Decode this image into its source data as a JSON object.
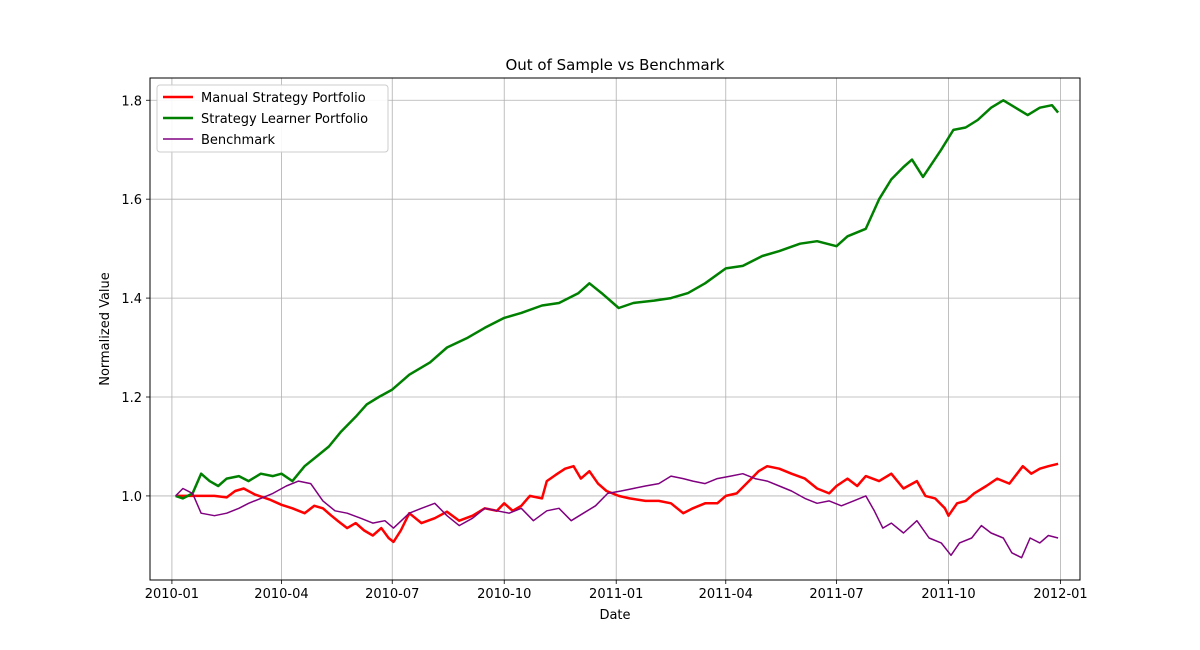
{
  "chart_data": {
    "type": "line",
    "title": "Out of Sample vs Benchmark",
    "xlabel": "Date",
    "ylabel": "Normalized Value",
    "x_range": [
      "2009-12-14",
      "2012-01-17"
    ],
    "ylim": [
      0.83,
      1.845
    ],
    "x_ticks": [
      {
        "date": "2010-01-01",
        "label": "2010-01"
      },
      {
        "date": "2010-04-01",
        "label": "2010-04"
      },
      {
        "date": "2010-07-01",
        "label": "2010-07"
      },
      {
        "date": "2010-10-01",
        "label": "2010-10"
      },
      {
        "date": "2011-01-01",
        "label": "2011-01"
      },
      {
        "date": "2011-04-01",
        "label": "2011-04"
      },
      {
        "date": "2011-07-01",
        "label": "2011-07"
      },
      {
        "date": "2011-10-01",
        "label": "2011-10"
      },
      {
        "date": "2012-01-01",
        "label": "2012-01"
      }
    ],
    "y_ticks": [
      {
        "value": 1.0,
        "label": "1.0"
      },
      {
        "value": 1.2,
        "label": "1.2"
      },
      {
        "value": 1.4,
        "label": "1.4"
      },
      {
        "value": 1.6,
        "label": "1.6"
      },
      {
        "value": 1.8,
        "label": "1.8"
      }
    ],
    "grid": true,
    "legend_position": "top-left",
    "series": [
      {
        "name": "Manual Strategy Portfolio",
        "color": "#ff0000",
        "line_width": "thick",
        "points": [
          [
            "2010-01-04",
            1.0
          ],
          [
            "2010-01-20",
            1.0
          ],
          [
            "2010-02-05",
            1.0
          ],
          [
            "2010-02-15",
            0.997
          ],
          [
            "2010-02-22",
            1.01
          ],
          [
            "2010-03-01",
            1.015
          ],
          [
            "2010-03-10",
            1.003
          ],
          [
            "2010-03-22",
            0.993
          ],
          [
            "2010-04-01",
            0.982
          ],
          [
            "2010-04-10",
            0.975
          ],
          [
            "2010-04-20",
            0.965
          ],
          [
            "2010-04-28",
            0.98
          ],
          [
            "2010-05-05",
            0.975
          ],
          [
            "2010-05-12",
            0.96
          ],
          [
            "2010-05-18",
            0.948
          ],
          [
            "2010-05-25",
            0.935
          ],
          [
            "2010-06-01",
            0.945
          ],
          [
            "2010-06-08",
            0.93
          ],
          [
            "2010-06-15",
            0.92
          ],
          [
            "2010-06-22",
            0.935
          ],
          [
            "2010-06-28",
            0.915
          ],
          [
            "2010-07-02",
            0.907
          ],
          [
            "2010-07-08",
            0.93
          ],
          [
            "2010-07-15",
            0.965
          ],
          [
            "2010-07-25",
            0.945
          ],
          [
            "2010-08-05",
            0.955
          ],
          [
            "2010-08-15",
            0.968
          ],
          [
            "2010-08-25",
            0.95
          ],
          [
            "2010-09-05",
            0.96
          ],
          [
            "2010-09-15",
            0.975
          ],
          [
            "2010-09-25",
            0.97
          ],
          [
            "2010-10-01",
            0.985
          ],
          [
            "2010-10-08",
            0.97
          ],
          [
            "2010-10-15",
            0.98
          ],
          [
            "2010-10-22",
            1.0
          ],
          [
            "2010-11-01",
            0.995
          ],
          [
            "2010-11-05",
            1.03
          ],
          [
            "2010-11-12",
            1.042
          ],
          [
            "2010-11-20",
            1.055
          ],
          [
            "2010-11-27",
            1.06
          ],
          [
            "2010-12-03",
            1.035
          ],
          [
            "2010-12-10",
            1.05
          ],
          [
            "2010-12-17",
            1.025
          ],
          [
            "2010-12-24",
            1.01
          ],
          [
            "2011-01-03",
            1.0
          ],
          [
            "2011-01-12",
            0.995
          ],
          [
            "2011-01-25",
            0.99
          ],
          [
            "2011-02-05",
            0.99
          ],
          [
            "2011-02-15",
            0.985
          ],
          [
            "2011-02-25",
            0.965
          ],
          [
            "2011-03-05",
            0.975
          ],
          [
            "2011-03-15",
            0.985
          ],
          [
            "2011-03-25",
            0.985
          ],
          [
            "2011-04-01",
            1.0
          ],
          [
            "2011-04-10",
            1.005
          ],
          [
            "2011-04-20",
            1.03
          ],
          [
            "2011-04-28",
            1.05
          ],
          [
            "2011-05-05",
            1.06
          ],
          [
            "2011-05-15",
            1.055
          ],
          [
            "2011-05-25",
            1.045
          ],
          [
            "2011-06-05",
            1.035
          ],
          [
            "2011-06-15",
            1.015
          ],
          [
            "2011-06-25",
            1.005
          ],
          [
            "2011-07-01",
            1.02
          ],
          [
            "2011-07-10",
            1.035
          ],
          [
            "2011-07-18",
            1.02
          ],
          [
            "2011-07-25",
            1.04
          ],
          [
            "2011-08-05",
            1.03
          ],
          [
            "2011-08-15",
            1.045
          ],
          [
            "2011-08-25",
            1.015
          ],
          [
            "2011-09-05",
            1.03
          ],
          [
            "2011-09-12",
            1.0
          ],
          [
            "2011-09-20",
            0.995
          ],
          [
            "2011-09-28",
            0.975
          ],
          [
            "2011-10-01",
            0.96
          ],
          [
            "2011-10-08",
            0.985
          ],
          [
            "2011-10-15",
            0.99
          ],
          [
            "2011-10-22",
            1.005
          ],
          [
            "2011-11-01",
            1.02
          ],
          [
            "2011-11-10",
            1.035
          ],
          [
            "2011-11-20",
            1.025
          ],
          [
            "2011-12-01",
            1.06
          ],
          [
            "2011-12-08",
            1.045
          ],
          [
            "2011-12-15",
            1.055
          ],
          [
            "2011-12-22",
            1.06
          ],
          [
            "2011-12-30",
            1.065
          ]
        ]
      },
      {
        "name": "Strategy Learner Portfolio",
        "color": "#008000",
        "line_width": "thick",
        "points": [
          [
            "2010-01-04",
            1.0
          ],
          [
            "2010-01-10",
            0.995
          ],
          [
            "2010-01-18",
            1.005
          ],
          [
            "2010-01-25",
            1.045
          ],
          [
            "2010-02-01",
            1.03
          ],
          [
            "2010-02-08",
            1.02
          ],
          [
            "2010-02-15",
            1.035
          ],
          [
            "2010-02-25",
            1.04
          ],
          [
            "2010-03-05",
            1.03
          ],
          [
            "2010-03-15",
            1.045
          ],
          [
            "2010-03-25",
            1.04
          ],
          [
            "2010-04-01",
            1.045
          ],
          [
            "2010-04-10",
            1.03
          ],
          [
            "2010-04-20",
            1.06
          ],
          [
            "2010-04-30",
            1.08
          ],
          [
            "2010-05-10",
            1.1
          ],
          [
            "2010-05-20",
            1.13
          ],
          [
            "2010-06-01",
            1.16
          ],
          [
            "2010-06-10",
            1.185
          ],
          [
            "2010-06-20",
            1.2
          ],
          [
            "2010-07-01",
            1.215
          ],
          [
            "2010-07-15",
            1.245
          ],
          [
            "2010-08-01",
            1.27
          ],
          [
            "2010-08-15",
            1.3
          ],
          [
            "2010-09-01",
            1.32
          ],
          [
            "2010-09-15",
            1.34
          ],
          [
            "2010-10-01",
            1.36
          ],
          [
            "2010-10-15",
            1.37
          ],
          [
            "2010-11-01",
            1.385
          ],
          [
            "2010-11-15",
            1.39
          ],
          [
            "2010-12-01",
            1.41
          ],
          [
            "2010-12-10",
            1.43
          ],
          [
            "2010-12-20",
            1.41
          ],
          [
            "2011-01-03",
            1.38
          ],
          [
            "2011-01-15",
            1.39
          ],
          [
            "2011-02-01",
            1.395
          ],
          [
            "2011-02-15",
            1.4
          ],
          [
            "2011-03-01",
            1.41
          ],
          [
            "2011-03-15",
            1.43
          ],
          [
            "2011-04-01",
            1.46
          ],
          [
            "2011-04-15",
            1.465
          ],
          [
            "2011-05-01",
            1.485
          ],
          [
            "2011-05-15",
            1.495
          ],
          [
            "2011-06-01",
            1.51
          ],
          [
            "2011-06-15",
            1.515
          ],
          [
            "2011-07-01",
            1.505
          ],
          [
            "2011-07-10",
            1.525
          ],
          [
            "2011-07-25",
            1.54
          ],
          [
            "2011-08-05",
            1.6
          ],
          [
            "2011-08-15",
            1.64
          ],
          [
            "2011-08-25",
            1.665
          ],
          [
            "2011-09-01",
            1.68
          ],
          [
            "2011-09-10",
            1.645
          ],
          [
            "2011-09-25",
            1.7
          ],
          [
            "2011-10-05",
            1.74
          ],
          [
            "2011-10-15",
            1.745
          ],
          [
            "2011-10-25",
            1.76
          ],
          [
            "2011-11-05",
            1.785
          ],
          [
            "2011-11-15",
            1.8
          ],
          [
            "2011-11-25",
            1.785
          ],
          [
            "2011-12-05",
            1.77
          ],
          [
            "2011-12-15",
            1.785
          ],
          [
            "2011-12-25",
            1.79
          ],
          [
            "2011-12-30",
            1.775
          ]
        ]
      },
      {
        "name": "Benchmark",
        "color": "#800080",
        "line_width": "thin",
        "points": [
          [
            "2010-01-04",
            1.0
          ],
          [
            "2010-01-10",
            1.015
          ],
          [
            "2010-01-18",
            1.005
          ],
          [
            "2010-01-25",
            0.965
          ],
          [
            "2010-02-05",
            0.96
          ],
          [
            "2010-02-15",
            0.965
          ],
          [
            "2010-02-25",
            0.975
          ],
          [
            "2010-03-05",
            0.985
          ],
          [
            "2010-03-15",
            0.995
          ],
          [
            "2010-03-25",
            1.005
          ],
          [
            "2010-04-05",
            1.02
          ],
          [
            "2010-04-15",
            1.03
          ],
          [
            "2010-04-25",
            1.025
          ],
          [
            "2010-05-05",
            0.99
          ],
          [
            "2010-05-15",
            0.97
          ],
          [
            "2010-05-25",
            0.965
          ],
          [
            "2010-06-05",
            0.955
          ],
          [
            "2010-06-15",
            0.945
          ],
          [
            "2010-06-25",
            0.95
          ],
          [
            "2010-07-02",
            0.935
          ],
          [
            "2010-07-15",
            0.965
          ],
          [
            "2010-07-25",
            0.975
          ],
          [
            "2010-08-05",
            0.985
          ],
          [
            "2010-08-15",
            0.96
          ],
          [
            "2010-08-25",
            0.94
          ],
          [
            "2010-09-05",
            0.955
          ],
          [
            "2010-09-15",
            0.975
          ],
          [
            "2010-09-25",
            0.97
          ],
          [
            "2010-10-05",
            0.965
          ],
          [
            "2010-10-15",
            0.975
          ],
          [
            "2010-10-25",
            0.95
          ],
          [
            "2010-11-05",
            0.97
          ],
          [
            "2010-11-15",
            0.975
          ],
          [
            "2010-11-25",
            0.95
          ],
          [
            "2010-12-05",
            0.965
          ],
          [
            "2010-12-15",
            0.98
          ],
          [
            "2010-12-25",
            1.005
          ],
          [
            "2011-01-05",
            1.01
          ],
          [
            "2011-01-15",
            1.015
          ],
          [
            "2011-01-25",
            1.02
          ],
          [
            "2011-02-05",
            1.025
          ],
          [
            "2011-02-15",
            1.04
          ],
          [
            "2011-02-25",
            1.035
          ],
          [
            "2011-03-05",
            1.03
          ],
          [
            "2011-03-15",
            1.025
          ],
          [
            "2011-03-25",
            1.035
          ],
          [
            "2011-04-05",
            1.04
          ],
          [
            "2011-04-15",
            1.045
          ],
          [
            "2011-04-25",
            1.035
          ],
          [
            "2011-05-05",
            1.03
          ],
          [
            "2011-05-15",
            1.02
          ],
          [
            "2011-05-25",
            1.01
          ],
          [
            "2011-06-05",
            0.995
          ],
          [
            "2011-06-15",
            0.985
          ],
          [
            "2011-06-25",
            0.99
          ],
          [
            "2011-07-05",
            0.98
          ],
          [
            "2011-07-15",
            0.99
          ],
          [
            "2011-07-25",
            1.0
          ],
          [
            "2011-08-01",
            0.97
          ],
          [
            "2011-08-08",
            0.935
          ],
          [
            "2011-08-15",
            0.945
          ],
          [
            "2011-08-25",
            0.925
          ],
          [
            "2011-09-05",
            0.95
          ],
          [
            "2011-09-15",
            0.915
          ],
          [
            "2011-09-25",
            0.905
          ],
          [
            "2011-10-03",
            0.88
          ],
          [
            "2011-10-10",
            0.905
          ],
          [
            "2011-10-20",
            0.915
          ],
          [
            "2011-10-28",
            0.94
          ],
          [
            "2011-11-05",
            0.925
          ],
          [
            "2011-11-15",
            0.915
          ],
          [
            "2011-11-22",
            0.885
          ],
          [
            "2011-11-30",
            0.875
          ],
          [
            "2011-12-07",
            0.915
          ],
          [
            "2011-12-15",
            0.905
          ],
          [
            "2011-12-22",
            0.92
          ],
          [
            "2011-12-30",
            0.915
          ]
        ]
      }
    ]
  }
}
